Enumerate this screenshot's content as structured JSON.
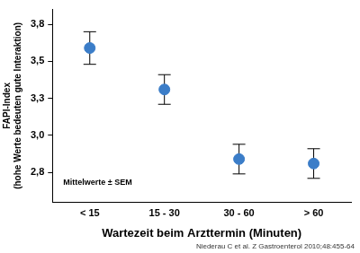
{
  "chart_data": {
    "type": "scatter",
    "y_label": "FAPI-Index",
    "y_sublabel": "(hohe Werte bedeuten gute Interaktion)",
    "x_label": "Wartezeit beim Arzttermin (Minuten)",
    "annotation": "Mittelwerte ± SEM",
    "source": "Niederau C et al. Z Gastroenterol 2010;48:455-64",
    "categories": [
      "< 15",
      "15 - 30",
      "30 - 60",
      "> 60"
    ],
    "values": [
      3.59,
      3.31,
      2.84,
      2.81
    ],
    "error": [
      0.11,
      0.1,
      0.1,
      0.1
    ],
    "color": "#3b7dc8",
    "marker": "circle",
    "ylim": [
      2.55,
      3.85
    ],
    "yticks": [
      {
        "value": 2.75,
        "label": "2,8"
      },
      {
        "value": 3.0,
        "label": "3,0"
      },
      {
        "value": 3.25,
        "label": "3,3"
      },
      {
        "value": 3.5,
        "label": "3,5"
      },
      {
        "value": 3.75,
        "label": "3,8"
      }
    ],
    "grid": false
  }
}
